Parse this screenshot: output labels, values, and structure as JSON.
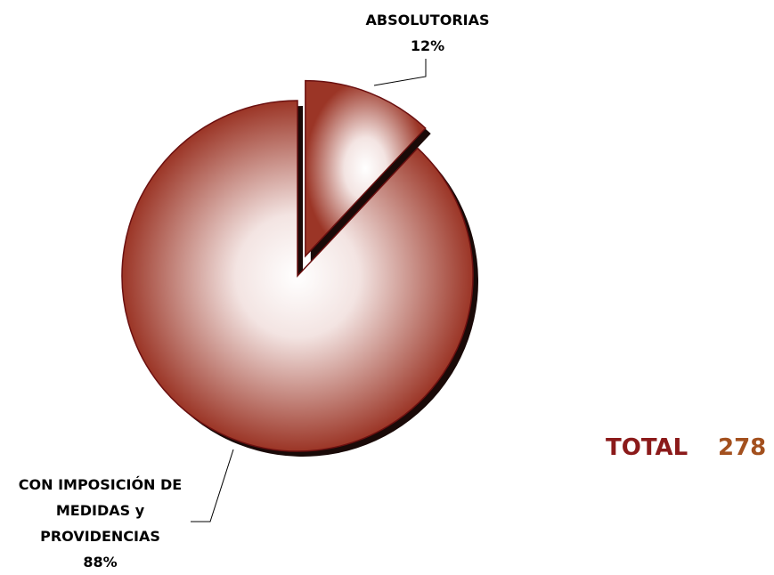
{
  "chart_data": {
    "type": "pie",
    "categories": [
      "ABSOLUTORIAS",
      "CON IMPOSICIÓN DE MEDIDAS y PROVIDENCIAS"
    ],
    "values": [
      12,
      88
    ],
    "value_labels": [
      "12%",
      "88%"
    ],
    "color": "#9b3526",
    "exploded": [
      true,
      false
    ],
    "total_label": "TOTAL",
    "total": 278
  }
}
